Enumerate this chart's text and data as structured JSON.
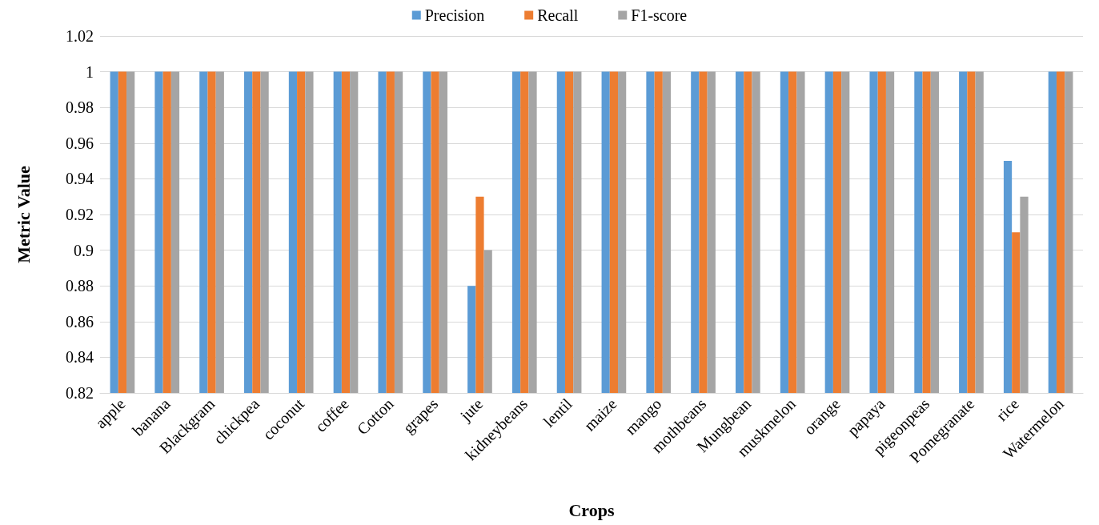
{
  "chart_data": {
    "type": "bar",
    "xlabel": "Crops",
    "ylabel": "Metric Value",
    "categories": [
      "apple",
      "banana",
      "Blackgram",
      "chickpea",
      "coconut",
      "coffee",
      "Cotton",
      "grapes",
      "jute",
      "kidneybeans",
      "lentil",
      "maize",
      "mango",
      "mothbeans",
      "Mungbean",
      "muskmelon",
      "orange",
      "papaya",
      "pigeonpeas",
      "Pomegranate",
      "rice",
      "Watermelon"
    ],
    "series": [
      {
        "name": "Precision",
        "color": "#5b9bd5",
        "values": [
          1,
          1,
          1,
          1,
          1,
          1,
          1,
          1,
          0.88,
          1,
          1,
          1,
          1,
          1,
          1,
          1,
          1,
          1,
          1,
          1,
          0.95,
          1
        ]
      },
      {
        "name": "Recall",
        "color": "#ed7d31",
        "values": [
          1,
          1,
          1,
          1,
          1,
          1,
          1,
          1,
          0.93,
          1,
          1,
          1,
          1,
          1,
          1,
          1,
          1,
          1,
          1,
          1,
          0.91,
          1
        ]
      },
      {
        "name": "F1-score",
        "color": "#a5a5a5",
        "values": [
          1,
          1,
          1,
          1,
          1,
          1,
          1,
          1,
          0.9,
          1,
          1,
          1,
          1,
          1,
          1,
          1,
          1,
          1,
          1,
          1,
          0.93,
          1
        ]
      }
    ],
    "ylim": [
      0.82,
      1.02
    ],
    "yticks": [
      0.82,
      0.84,
      0.86,
      0.88,
      0.9,
      0.92,
      0.94,
      0.96,
      0.98,
      1,
      1.02
    ],
    "grid": "y",
    "legend": "top"
  }
}
